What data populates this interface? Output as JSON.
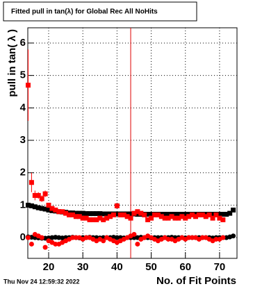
{
  "chart_data": {
    "type": "scatter",
    "title": "Fitted pull in tan(λ) for Global Rec All NoHits",
    "x_label": "No. of Fit Points",
    "y_label": "pull in tan( λ )",
    "timestamp": "Thu Nov 24 12:59:32 2022",
    "xlim": [
      13.9,
      75.1
    ],
    "ylim": [
      -0.64,
      6.47
    ],
    "xticks": [
      20,
      30,
      40,
      50,
      60,
      70
    ],
    "yticks": [
      0,
      1,
      2,
      3,
      4,
      5,
      6
    ],
    "grid": true,
    "vline": {
      "x": 44,
      "color": "#e00000"
    },
    "x": [
      14,
      15,
      16,
      17,
      18,
      19,
      20,
      21,
      22,
      23,
      24,
      25,
      26,
      27,
      28,
      29,
      30,
      31,
      32,
      33,
      34,
      35,
      36,
      37,
      38,
      39,
      40,
      41,
      42,
      43,
      44,
      45,
      46,
      47,
      48,
      49,
      50,
      51,
      52,
      53,
      54,
      55,
      56,
      57,
      58,
      59,
      60,
      61,
      62,
      63,
      64,
      65,
      66,
      67,
      68,
      69,
      70,
      71,
      72,
      73,
      74
    ],
    "series": [
      {
        "color": "#000000",
        "marker": "square",
        "values": [
          1.0,
          0.98,
          0.95,
          0.92,
          0.9,
          0.88,
          0.85,
          0.83,
          0.82,
          0.8,
          0.79,
          0.78,
          0.76,
          0.76,
          0.75,
          0.75,
          0.75,
          0.74,
          0.74,
          0.74,
          0.74,
          0.74,
          0.73,
          0.73,
          0.73,
          0.73,
          0.73,
          0.73,
          0.73,
          0.73,
          0.73,
          0.73,
          0.72,
          0.72,
          0.72,
          0.72,
          0.72,
          0.72,
          0.72,
          0.72,
          0.72,
          0.72,
          0.72,
          0.72,
          0.72,
          0.72,
          0.72,
          0.72,
          0.72,
          0.72,
          0.72,
          0.72,
          0.72,
          0.72,
          0.72,
          0.72,
          0.72,
          0.72,
          0.72,
          0.75,
          0.85
        ]
      },
      {
        "color": "#000000",
        "marker": "circle",
        "values": [
          0.02,
          0.01,
          0.0,
          -0.01,
          -0.02,
          -0.02,
          -0.01,
          0.0,
          0.01,
          0.0,
          -0.01,
          0.0,
          0.0,
          0.01,
          0.0,
          -0.01,
          0.0,
          0.0,
          0.01,
          0.0,
          0.0,
          -0.01,
          0.0,
          0.0,
          0.0,
          0.01,
          0.0,
          0.0,
          -0.01,
          0.0,
          0.0,
          0.0,
          0.0,
          0.01,
          0.0,
          0.0,
          -0.01,
          0.0,
          0.0,
          0.0,
          0.0,
          0.0,
          0.01,
          0.0,
          0.0,
          0.0,
          -0.01,
          0.0,
          0.0,
          0.0,
          0.0,
          0.0,
          0.0,
          0.0,
          -0.01,
          0.0,
          0.0,
          0.0,
          0.0,
          0.02,
          0.05
        ]
      },
      {
        "color": "#ff0000",
        "marker": "square",
        "values": [
          4.7,
          1.7,
          1.3,
          1.3,
          1.2,
          1.35,
          1.0,
          0.9,
          0.85,
          0.8,
          0.8,
          0.75,
          0.7,
          0.7,
          0.65,
          0.65,
          0.6,
          0.6,
          0.55,
          0.55,
          0.55,
          0.6,
          0.55,
          0.6,
          0.65,
          0.7,
          0.98,
          0.7,
          0.7,
          0.65,
          0.6,
          0.75,
          0.8,
          0.75,
          0.7,
          0.55,
          0.6,
          0.7,
          0.7,
          0.65,
          0.6,
          0.6,
          0.65,
          0.6,
          0.6,
          0.65,
          0.6,
          0.65,
          0.7,
          0.65,
          0.7,
          0.7,
          0.65,
          0.7,
          0.6,
          0.7,
          0.6,
          0.55,
          null,
          null,
          null
        ],
        "errors": [
          1.1,
          0.3,
          0.15,
          0.1,
          0.1,
          0.1,
          0.05,
          0.05,
          0.05,
          0.05,
          0.05,
          0.05,
          0.05,
          0.05,
          0.05,
          0.05,
          0.05,
          0.05,
          0.05,
          0.05,
          0.05,
          0.05,
          0.05,
          0.05,
          0.05,
          0.05,
          0.05,
          0.05,
          0.05,
          0.05,
          0.05,
          0.05,
          0.05,
          0.05,
          0.05,
          0.05,
          0.05,
          0.05,
          0.05,
          0.05,
          0.05,
          0.05,
          0.05,
          0.05,
          0.05,
          0.05,
          0.05,
          0.05,
          0.05,
          0.05,
          0.05,
          0.05,
          0.05,
          0.05,
          0.05,
          0.05,
          0.05,
          0.05,
          null,
          null,
          null
        ]
      },
      {
        "color": "#ff0000",
        "marker": "circle",
        "values": [
          0.0,
          -0.2,
          0.1,
          0.05,
          0.0,
          -0.3,
          -0.1,
          -0.15,
          -0.2,
          -0.2,
          -0.15,
          -0.1,
          -0.05,
          0.0,
          0.0,
          0.0,
          -0.05,
          0.0,
          0.0,
          -0.05,
          -0.1,
          -0.05,
          -0.1,
          0.0,
          -0.05,
          -0.1,
          -0.15,
          -0.1,
          -0.05,
          0.0,
          0.05,
          0.1,
          -0.2,
          -0.05,
          0.0,
          0.05,
          0.0,
          -0.05,
          -0.1,
          -0.05,
          0.0,
          -0.05,
          -0.05,
          -0.1,
          -0.05,
          0.0,
          -0.05,
          0.0,
          0.0,
          0.0,
          -0.05,
          0.0,
          0.0,
          -0.05,
          -0.1,
          -0.05,
          -0.05,
          0.0,
          null,
          null,
          null
        ]
      }
    ]
  }
}
